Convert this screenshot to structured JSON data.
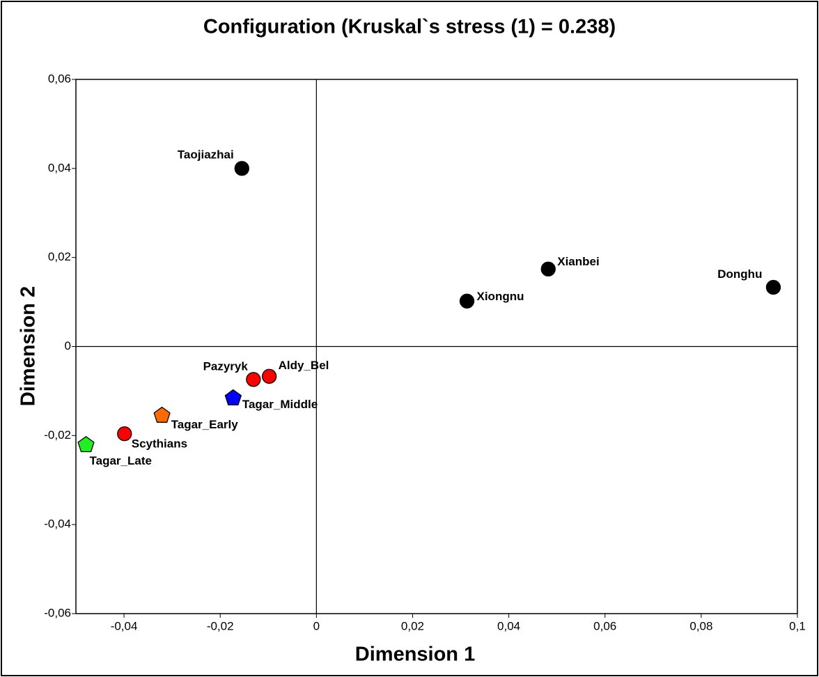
{
  "chart_data": {
    "type": "scatter",
    "title": "Configuration (Kruskal`s stress (1) = 0.238)",
    "x_label": "Dimension 1",
    "y_label": "Dimension 2",
    "xlim": [
      -0.05,
      0.1
    ],
    "ylim": [
      -0.06,
      0.06
    ],
    "xticks": [
      {
        "value": -0.04,
        "label": "-0,04"
      },
      {
        "value": -0.02,
        "label": "-0,02"
      },
      0,
      {
        "value": 0.02,
        "label": "0,02"
      },
      {
        "value": 0.04,
        "label": "0,04"
      },
      {
        "value": 0.06,
        "label": "0,06"
      },
      {
        "value": 0.08,
        "label": "0,08"
      },
      {
        "value": 0.1,
        "label": "0,1"
      }
    ],
    "yticks": [
      {
        "value": -0.06,
        "label": "-0,06"
      },
      {
        "value": -0.04,
        "label": "-0,04"
      },
      {
        "value": -0.02,
        "label": "-0,02"
      },
      0,
      {
        "value": 0.02,
        "label": "0,02"
      },
      {
        "value": 0.04,
        "label": "0,04"
      },
      {
        "value": 0.06,
        "label": "0,06"
      }
    ],
    "points": [
      {
        "label": "Taojiazhai",
        "x": -0.0155,
        "y": 0.04,
        "color": "#000000",
        "marker": "circle"
      },
      {
        "label": "Xianbei",
        "x": 0.0482,
        "y": 0.0174,
        "color": "#000000",
        "marker": "circle"
      },
      {
        "label": "Donghu",
        "x": 0.095,
        "y": 0.0133,
        "color": "#000000",
        "marker": "circle"
      },
      {
        "label": "Xiongnu",
        "x": 0.0313,
        "y": 0.0102,
        "color": "#000000",
        "marker": "circle"
      },
      {
        "label": "Pazyryk",
        "x": -0.0131,
        "y": -0.0074,
        "color": "#ff0000",
        "marker": "circle"
      },
      {
        "label": "Aldy_Bel",
        "x": -0.0098,
        "y": -0.0067,
        "color": "#ff0000",
        "marker": "circle"
      },
      {
        "label": "Tagar_Middle",
        "x": -0.0173,
        "y": -0.0116,
        "color": "#0000ff",
        "marker": "pentagon"
      },
      {
        "label": "Tagar_Early",
        "x": -0.0321,
        "y": -0.0155,
        "color": "#ff6a00",
        "marker": "pentagon"
      },
      {
        "label": "Scythians",
        "x": -0.0399,
        "y": -0.0196,
        "color": "#ff0000",
        "marker": "circle"
      },
      {
        "label": "Tagar_Late",
        "x": -0.0479,
        "y": -0.0221,
        "color": "#22ee22",
        "marker": "pentagon"
      }
    ]
  }
}
